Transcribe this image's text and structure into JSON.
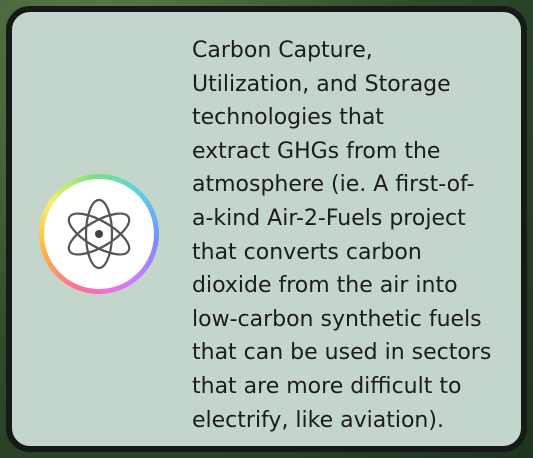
{
  "card": {
    "lines": [
      "Carbon Capture,",
      "Utilization, and Storage",
      "technologies that",
      "extract GHGs from the",
      "atmosphere (ie. A first-of-",
      "a-kind Air-2-Fuels project",
      "that converts carbon",
      "dioxide from the air into",
      "low-carbon synthetic fuels",
      "that can be used in sectors",
      "that are more difficult to",
      "electrify, like aviation)."
    ]
  }
}
